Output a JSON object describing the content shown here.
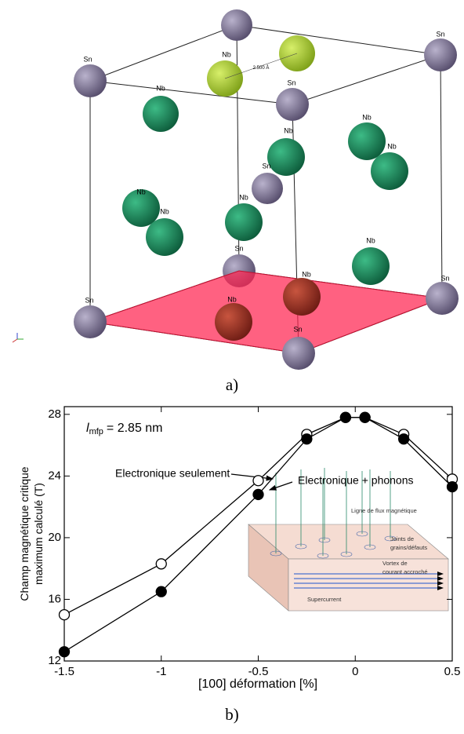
{
  "figure_a": {
    "atom_labels": [
      "Sn",
      "Sn",
      "Nb",
      "Sn",
      "Nb",
      "Nb",
      "Nb",
      "Nb",
      "Sn",
      "Nb",
      "Nb",
      "Nb",
      "Nb",
      "Sn",
      "Nb",
      "Nb",
      "Sn",
      "Sn",
      "Sn"
    ],
    "distance_label": "2.500 Å",
    "caption": "a)"
  },
  "chart_data": {
    "type": "line",
    "caption": "b)",
    "annotation": {
      "symbol": "l",
      "subscript": "mfp",
      "text": "= 2.85 nm"
    },
    "x_label": "[100] déformation  [%]",
    "y_label": [
      "Champ magnétique critique",
      "maximum calculé (T)"
    ],
    "x": [
      -1.5,
      -1,
      -0.5,
      -0.25,
      -0.05,
      0.05,
      0.25,
      0.5
    ],
    "series": [
      {
        "name": "Electronique seulement",
        "marker": "open",
        "color": "#000000",
        "values": [
          15,
          18.3,
          23.7,
          26.7,
          27.8,
          27.8,
          26.7,
          23.8
        ]
      },
      {
        "name": "Electronique + phonons",
        "marker": "filled",
        "color": "#000000",
        "values": [
          12.6,
          16.5,
          22.8,
          26.4,
          27.8,
          27.8,
          26.4,
          23.3
        ]
      }
    ],
    "xlim": [
      -1.5,
      0.5
    ],
    "xticks": [
      -1.5,
      -1,
      -0.5,
      0,
      0.5
    ],
    "ylim": [
      12,
      28.5
    ],
    "yticks": [
      12,
      16,
      20,
      24,
      28
    ],
    "inset_labels": [
      [
        "Ligne de flux magnétique"
      ],
      [
        "Joints de",
        "grains/défauts"
      ],
      [
        "Vortex de",
        "courant accroché"
      ],
      [
        "Supercurrent"
      ]
    ]
  }
}
